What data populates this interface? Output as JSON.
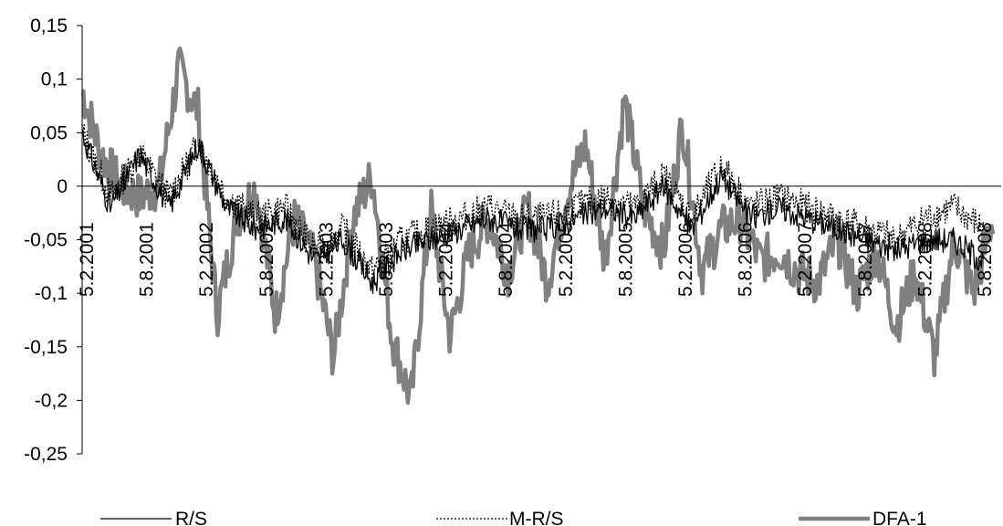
{
  "chart_data": {
    "type": "line",
    "title": "",
    "xlabel": "",
    "ylabel": "",
    "ylim": [
      -0.25,
      0.15
    ],
    "y_ticks": [
      {
        "value": 0.15,
        "label": "0,15"
      },
      {
        "value": 0.1,
        "label": "0,1"
      },
      {
        "value": 0.05,
        "label": "0,05"
      },
      {
        "value": 0,
        "label": "0"
      },
      {
        "value": -0.05,
        "label": "-0,05"
      },
      {
        "value": -0.1,
        "label": "-0,1"
      },
      {
        "value": -0.15,
        "label": "-0,15"
      },
      {
        "value": -0.2,
        "label": "-0,2"
      },
      {
        "value": -0.25,
        "label": "-0,25"
      }
    ],
    "x_tick_labels": [
      "5.2.2001",
      "5.8.2001",
      "5.2.2002",
      "5.8.2002",
      "5.2.2003",
      "5.8.2003",
      "5.2.2004",
      "5.8.2004",
      "5.2.2005",
      "5.8.2005",
      "5.2.2006",
      "5.8.2006",
      "5.2.2007",
      "5.8.2007",
      "5.2.2008",
      "5.8.2008"
    ],
    "grid": false,
    "legend_position": "bottom",
    "series": [
      {
        "name": "R/S",
        "style": "solid",
        "color": "#000000",
        "dates": [
          "2001-02-05",
          "2001-05-05",
          "2001-08-05",
          "2001-11-05",
          "2002-02-05",
          "2002-05-05",
          "2002-08-05",
          "2002-11-05",
          "2003-02-05",
          "2003-05-05",
          "2003-08-05",
          "2003-11-05",
          "2004-02-05",
          "2004-05-05",
          "2004-08-05",
          "2004-11-05",
          "2005-02-05",
          "2005-05-05",
          "2005-08-05",
          "2005-11-05",
          "2006-02-05",
          "2006-05-05",
          "2006-08-05",
          "2006-11-05",
          "2007-02-05",
          "2007-05-05",
          "2007-08-05",
          "2007-11-05",
          "2008-02-05",
          "2008-05-05",
          "2008-08-05",
          "2008-11-05"
        ],
        "values": [
          0.05,
          -0.02,
          0.03,
          -0.02,
          0.04,
          -0.02,
          -0.04,
          -0.03,
          -0.07,
          -0.05,
          -0.09,
          -0.06,
          -0.05,
          -0.04,
          -0.03,
          -0.04,
          -0.04,
          -0.03,
          -0.02,
          -0.03,
          0.0,
          -0.04,
          0.01,
          -0.03,
          -0.02,
          -0.03,
          -0.04,
          -0.05,
          -0.06,
          -0.05,
          -0.05,
          -0.07
        ]
      },
      {
        "name": "M-R/S",
        "style": "dotted",
        "color": "#000000",
        "dates": [
          "2001-02-05",
          "2001-05-05",
          "2001-08-05",
          "2001-11-05",
          "2002-02-05",
          "2002-05-05",
          "2002-08-05",
          "2002-11-05",
          "2003-02-05",
          "2003-05-05",
          "2003-08-05",
          "2003-11-05",
          "2004-02-05",
          "2004-05-05",
          "2004-08-05",
          "2004-11-05",
          "2005-02-05",
          "2005-05-05",
          "2005-08-05",
          "2005-11-05",
          "2006-02-05",
          "2006-05-05",
          "2006-08-05",
          "2006-11-05",
          "2007-02-05",
          "2007-05-05",
          "2007-08-05",
          "2007-11-05",
          "2008-02-05",
          "2008-05-05",
          "2008-08-05",
          "2008-11-05"
        ],
        "values": [
          0.05,
          -0.01,
          0.03,
          -0.01,
          0.04,
          -0.01,
          -0.03,
          -0.02,
          -0.06,
          -0.04,
          -0.08,
          -0.05,
          -0.04,
          -0.03,
          -0.02,
          -0.03,
          -0.03,
          -0.02,
          -0.01,
          -0.02,
          0.01,
          -0.03,
          0.02,
          -0.02,
          -0.01,
          -0.02,
          -0.03,
          -0.04,
          -0.05,
          -0.03,
          -0.02,
          -0.04
        ]
      },
      {
        "name": "DFA-1",
        "style": "thick",
        "color": "#808080",
        "dates": [
          "2001-02-05",
          "2001-04-05",
          "2001-06-05",
          "2001-08-05",
          "2001-10-05",
          "2001-12-05",
          "2002-02-05",
          "2002-04-05",
          "2002-06-05",
          "2002-08-05",
          "2002-10-05",
          "2002-12-05",
          "2003-02-05",
          "2003-04-05",
          "2003-06-05",
          "2003-08-05",
          "2003-10-05",
          "2003-12-05",
          "2004-02-05",
          "2004-04-05",
          "2004-06-05",
          "2004-08-05",
          "2004-10-05",
          "2004-12-05",
          "2005-02-05",
          "2005-04-05",
          "2005-06-05",
          "2005-08-05",
          "2005-10-05",
          "2005-12-05",
          "2006-02-05",
          "2006-04-05",
          "2006-06-05",
          "2006-08-05",
          "2006-10-05",
          "2006-12-05",
          "2007-02-05",
          "2007-04-05",
          "2007-06-05",
          "2007-08-05",
          "2007-10-05",
          "2007-12-05",
          "2008-02-05",
          "2008-04-05",
          "2008-06-05",
          "2008-08-05",
          "2008-10-05",
          "2008-12-05"
        ],
        "values": [
          0.09,
          0.03,
          0.0,
          -0.01,
          0.0,
          0.11,
          0.07,
          -0.12,
          -0.03,
          0.0,
          -0.12,
          -0.03,
          -0.07,
          -0.16,
          -0.03,
          0.01,
          -0.14,
          -0.2,
          -0.02,
          -0.14,
          -0.06,
          -0.03,
          -0.08,
          -0.02,
          -0.09,
          -0.01,
          0.04,
          -0.07,
          0.08,
          -0.02,
          -0.06,
          0.06,
          -0.08,
          -0.04,
          -0.03,
          -0.07,
          -0.06,
          -0.08,
          -0.09,
          -0.05,
          -0.1,
          -0.06,
          -0.13,
          -0.08,
          -0.16,
          -0.05,
          -0.1,
          -0.03
        ]
      }
    ]
  }
}
